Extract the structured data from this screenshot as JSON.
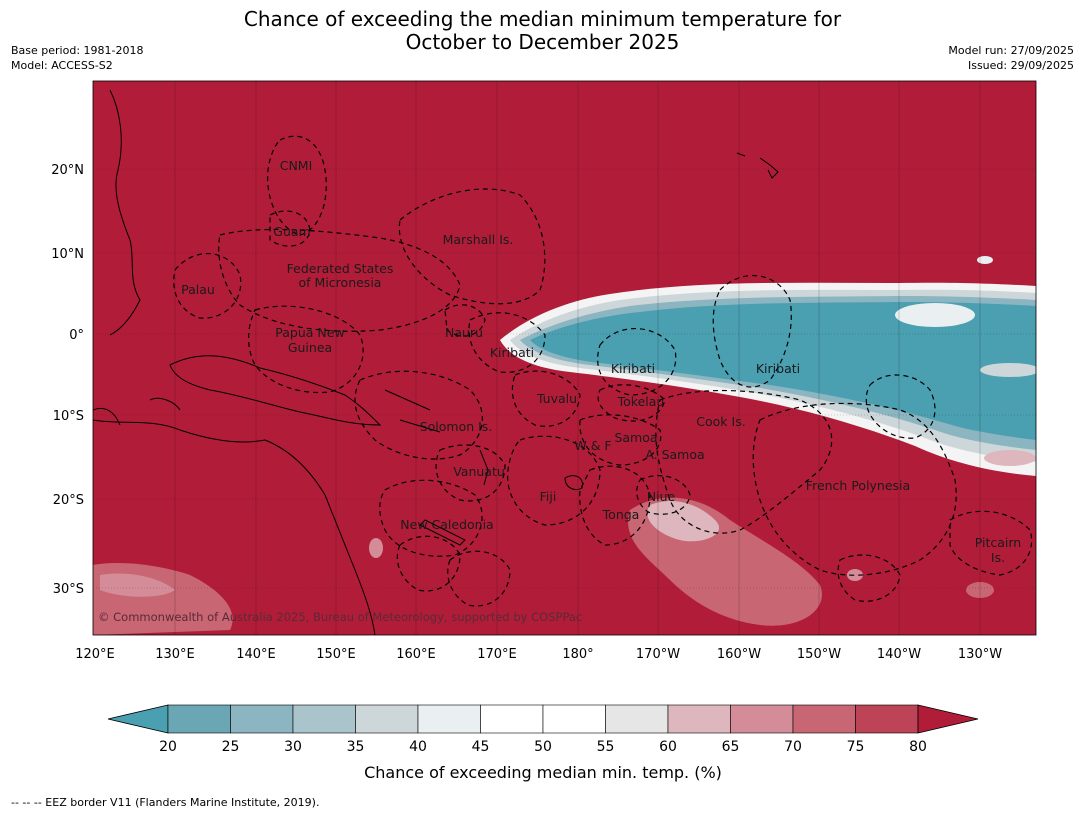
{
  "header": {
    "title_line1": "Chance of exceeding the median minimum temperature for",
    "title_line2": "October to December 2025",
    "base_period": "Base period: 1981-2018",
    "model": "Model: ACCESS-S2",
    "model_run": "Model run: 27/09/2025",
    "issued": "Issued: 29/09/2025"
  },
  "map": {
    "lon_ticks": [
      "120°E",
      "130°E",
      "140°E",
      "150°E",
      "160°E",
      "170°E",
      "180°",
      "170°W",
      "160°W",
      "150°W",
      "140°W",
      "130°W"
    ],
    "lat_ticks": [
      "20°N",
      "10°N",
      "0°",
      "10°S",
      "20°S",
      "30°S"
    ],
    "regions": {
      "cnmi": "CNMI",
      "guam": "Guam",
      "marshall": "Marshall Is.",
      "fsm_line1": "Federated States",
      "fsm_line2": "of Micronesia",
      "palau": "Palau",
      "png_line1": "Papua New",
      "png_line2": "Guinea",
      "nauru": "Nauru",
      "kiribati_west": "Kiribati",
      "kiribati_central": "Kiribati",
      "kiribati_east": "Kiribati",
      "tuvalu": "Tuvalu",
      "tokelau": "Tokelau",
      "cook": "Cook Is.",
      "solomon": "Solomon Is.",
      "wallis": "W & F",
      "samoa": "Samoa",
      "american_samoa": "A. Samoa",
      "vanuatu": "Vanuatu",
      "fiji": "Fiji",
      "niue": "Niue",
      "tonga": "Tonga",
      "new_caledonia": "New Caledonia",
      "french_polynesia": "French Polynesia",
      "pitcairn_line1": "Pitcairn",
      "pitcairn_line2": "Is."
    },
    "copyright": "© Commonwealth of Australia 2025, Bureau of Meteorology, supported by COSPPac"
  },
  "colorbar": {
    "ticks": [
      "20",
      "25",
      "30",
      "35",
      "40",
      "45",
      "50",
      "55",
      "60",
      "65",
      "70",
      "75",
      "80"
    ],
    "colors": {
      "below20": "#4a9fb1",
      "c20_25": "#6ba6b4",
      "c25_30": "#8ab5c1",
      "c30_35": "#a9c4cb",
      "c35_40": "#cdd7da",
      "c40_45": "#eaf0f1",
      "c45_50": "#ffffff",
      "c50_55": "#ffffff",
      "c55_60": "#e6e6e6",
      "c60_65": "#deb6bd",
      "c65_70": "#d48d98",
      "c70_75": "#c86674",
      "c75_80": "#bd4356",
      "above80": "#b11d39"
    },
    "label": "Chance of exceeding median min. temp. (%)"
  },
  "footnote": "--  --  -- EEZ border V11 (Flanders Marine Institute, 2019)."
}
